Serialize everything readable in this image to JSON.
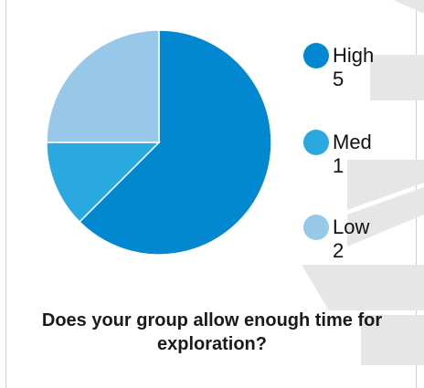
{
  "chart_data": {
    "type": "pie",
    "title": "Does your group allow enough time for exploration?",
    "slices": [
      {
        "label": "High",
        "value": 5,
        "color": "#0288D1"
      },
      {
        "label": "Med",
        "value": 1,
        "color": "#29A9DF"
      },
      {
        "label": "Low",
        "value": 2,
        "color": "#97C8EA"
      }
    ],
    "legend_position": "right"
  },
  "legend": [
    {
      "label": "High",
      "value": "5"
    },
    {
      "label": "Med",
      "value": "1"
    },
    {
      "label": "Low",
      "value": "2"
    }
  ],
  "watermark_color": "#e6e6e6"
}
